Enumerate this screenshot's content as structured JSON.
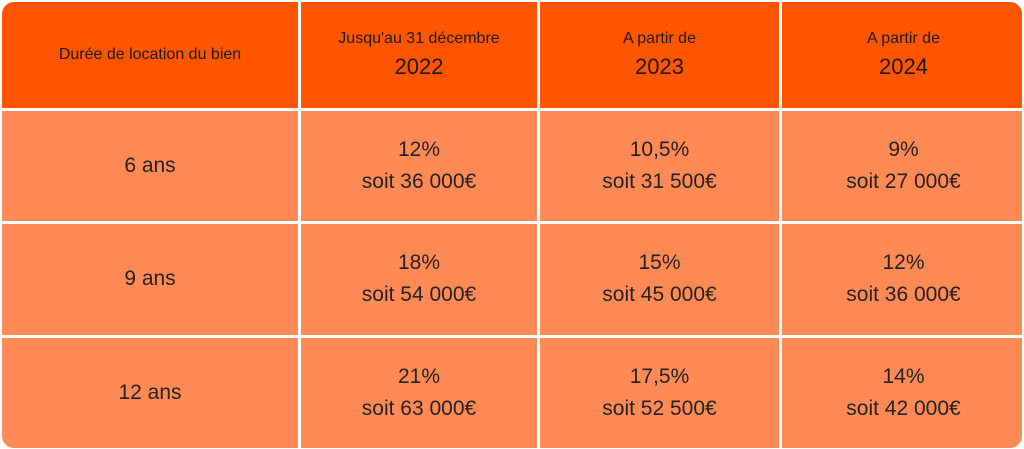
{
  "header": {
    "col0": "Durée de location du bien",
    "col1": {
      "label": "Jusqu'au 31 décembre",
      "year": "2022"
    },
    "col2": {
      "label": "A partir de",
      "year": "2023"
    },
    "col3": {
      "label": "A partir de",
      "year": "2024"
    }
  },
  "rows": [
    {
      "duration": "6 ans",
      "cells": [
        {
          "rate": "12%",
          "amount": "soit 36 000€"
        },
        {
          "rate": "10,5%",
          "amount": "soit 31 500€"
        },
        {
          "rate": "9%",
          "amount": "soit 27 000€"
        }
      ]
    },
    {
      "duration": "9 ans",
      "cells": [
        {
          "rate": "18%",
          "amount": "soit 54 000€"
        },
        {
          "rate": "15%",
          "amount": "soit 45 000€"
        },
        {
          "rate": "12%",
          "amount": "soit 36 000€"
        }
      ]
    },
    {
      "duration": "12 ans",
      "cells": [
        {
          "rate": "21%",
          "amount": "soit 63 000€"
        },
        {
          "rate": "17,5%",
          "amount": "soit 52 500€"
        },
        {
          "rate": "14%",
          "amount": "soit 42 000€"
        }
      ]
    }
  ],
  "colors": {
    "header_bg": "#ff5500",
    "cell_bg": "#ff8a55"
  }
}
